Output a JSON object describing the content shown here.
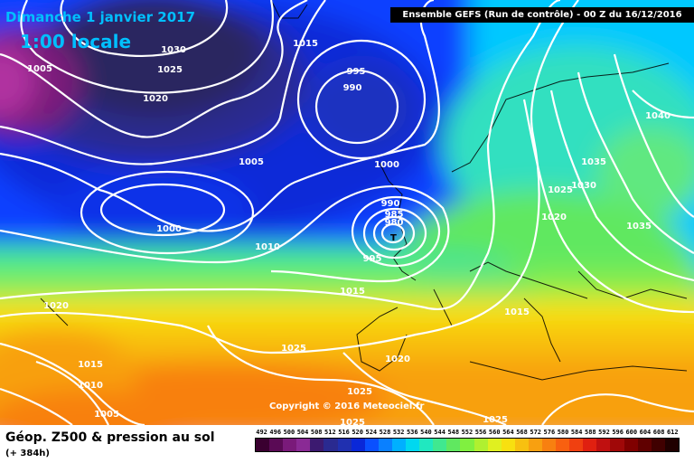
{
  "header": {
    "date": "Dimanche 1 janvier 2017",
    "time": "1:00 locale",
    "run_info": "Ensemble GEFS  (Run de contrôle)  -  00 Z du 16/12/2016"
  },
  "footer": {
    "title": "Géop. Z500 & pression au sol",
    "lead": "(+ 384h)",
    "copyright": "Copyright © 2016 Meteociel.fr"
  },
  "scale": {
    "labels": [
      "492",
      "496",
      "500",
      "504",
      "508",
      "512",
      "516",
      "520",
      "524",
      "528",
      "532",
      "536",
      "540",
      "544",
      "548",
      "552",
      "556",
      "560",
      "564",
      "568",
      "572",
      "576",
      "580",
      "584",
      "588",
      "592",
      "596",
      "600",
      "604",
      "608",
      "612"
    ],
    "colors": [
      "#3a0030",
      "#5a0a55",
      "#7a1a7a",
      "#8a2a95",
      "#3c1a70",
      "#2a2a90",
      "#2030b0",
      "#0a28d8",
      "#0a50ff",
      "#0a80ff",
      "#00b0ff",
      "#00d8f0",
      "#20e8c0",
      "#40e890",
      "#60e860",
      "#80f040",
      "#b0f030",
      "#e0f020",
      "#f8e010",
      "#f8c010",
      "#f8a010",
      "#f88010",
      "#f86010",
      "#f04010",
      "#e02010",
      "#c01010",
      "#a00808",
      "#800000",
      "#600000",
      "#400000",
      "#200000"
    ]
  },
  "map": {
    "isobar_labels": [
      {
        "text": "1030"
      },
      {
        "text": "1025"
      },
      {
        "text": "1005"
      },
      {
        "text": "1020"
      },
      {
        "text": "1015"
      },
      {
        "text": "995"
      },
      {
        "text": "990"
      },
      {
        "text": "1005"
      },
      {
        "text": "1000"
      },
      {
        "text": "1000"
      },
      {
        "text": "1010"
      },
      {
        "text": "990"
      },
      {
        "text": "985"
      },
      {
        "text": "980"
      },
      {
        "text": "995"
      },
      {
        "text": "1015"
      },
      {
        "text": "1020"
      },
      {
        "text": "1025"
      },
      {
        "text": "1015"
      },
      {
        "text": "1010"
      },
      {
        "text": "1005"
      },
      {
        "text": "1020"
      },
      {
        "text": "1025"
      },
      {
        "text": "1025"
      },
      {
        "text": "1025"
      },
      {
        "text": "1015"
      },
      {
        "text": "1040"
      },
      {
        "text": "1035"
      },
      {
        "text": "1030"
      },
      {
        "text": "1025"
      },
      {
        "text": "1020"
      },
      {
        "text": "1035"
      }
    ],
    "low_center_marker": "T"
  }
}
